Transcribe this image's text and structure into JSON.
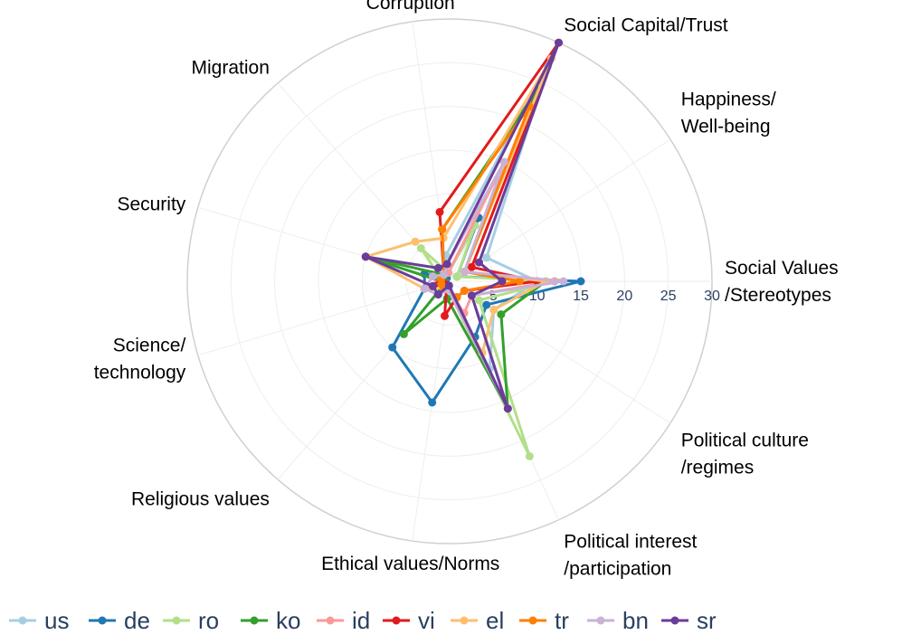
{
  "chart_data": {
    "type": "radar",
    "title": "",
    "radial_range": [
      0,
      30
    ],
    "radial_ticks": [
      "0",
      "5",
      "10",
      "15",
      "20",
      "25",
      "30"
    ],
    "categories": [
      [
        "Social Values",
        "/Stereotypes"
      ],
      [
        "Happiness/",
        "Well-being"
      ],
      [
        "Social Capital/Trust"
      ],
      [
        "Corruption"
      ],
      [
        "Migration"
      ],
      [
        "Security"
      ],
      [
        "Science/",
        "technology"
      ],
      [
        "Religious values"
      ],
      [
        "Ethical values/Norms"
      ],
      [
        "Political interest",
        "/participation"
      ],
      [
        "Political culture",
        "/regimes"
      ]
    ],
    "legend_position": "bottom",
    "series": [
      {
        "name": "us",
        "color": "#a6cee3",
        "values": [
          10,
          5,
          27,
          3,
          1,
          3,
          1,
          0.5,
          1,
          11,
          6
        ]
      },
      {
        "name": "de",
        "color": "#1f78b4",
        "values": [
          15,
          1,
          8,
          1,
          0.5,
          3,
          3,
          10,
          14,
          7,
          5
        ]
      },
      {
        "name": "ro",
        "color": "#b2df8a",
        "values": [
          12,
          1,
          7,
          1,
          5,
          1,
          1,
          0.5,
          1,
          22,
          4
        ]
      },
      {
        "name": "ko",
        "color": "#33a02c",
        "values": [
          11,
          2,
          24,
          6,
          1,
          10,
          0.5,
          8,
          2,
          16,
          7
        ]
      },
      {
        "name": "id",
        "color": "#fb9a99",
        "values": [
          12,
          2,
          15,
          1,
          1,
          1,
          3,
          1,
          1,
          4,
          3
        ]
      },
      {
        "name": "vi",
        "color": "#e31a1c",
        "values": [
          10,
          3,
          30,
          8,
          1,
          1,
          2,
          0.5,
          4,
          2,
          2
        ]
      },
      {
        "name": "el",
        "color": "#fdbf6f",
        "values": [
          11,
          2,
          28,
          5,
          6,
          10,
          3,
          1,
          1,
          9,
          6
        ]
      },
      {
        "name": "tr",
        "color": "#ff7f00",
        "values": [
          8,
          2,
          22,
          6,
          1,
          1,
          1,
          1,
          1,
          2,
          2
        ]
      },
      {
        "name": "bn",
        "color": "#cab2d6",
        "values": [
          13,
          2,
          15,
          2,
          1,
          2,
          3,
          2,
          1,
          16,
          3
        ]
      },
      {
        "name": "sr",
        "color": "#6a3d9a",
        "values": [
          6,
          4,
          30,
          2,
          2,
          10,
          2,
          2,
          0.5,
          16,
          3
        ]
      }
    ]
  }
}
